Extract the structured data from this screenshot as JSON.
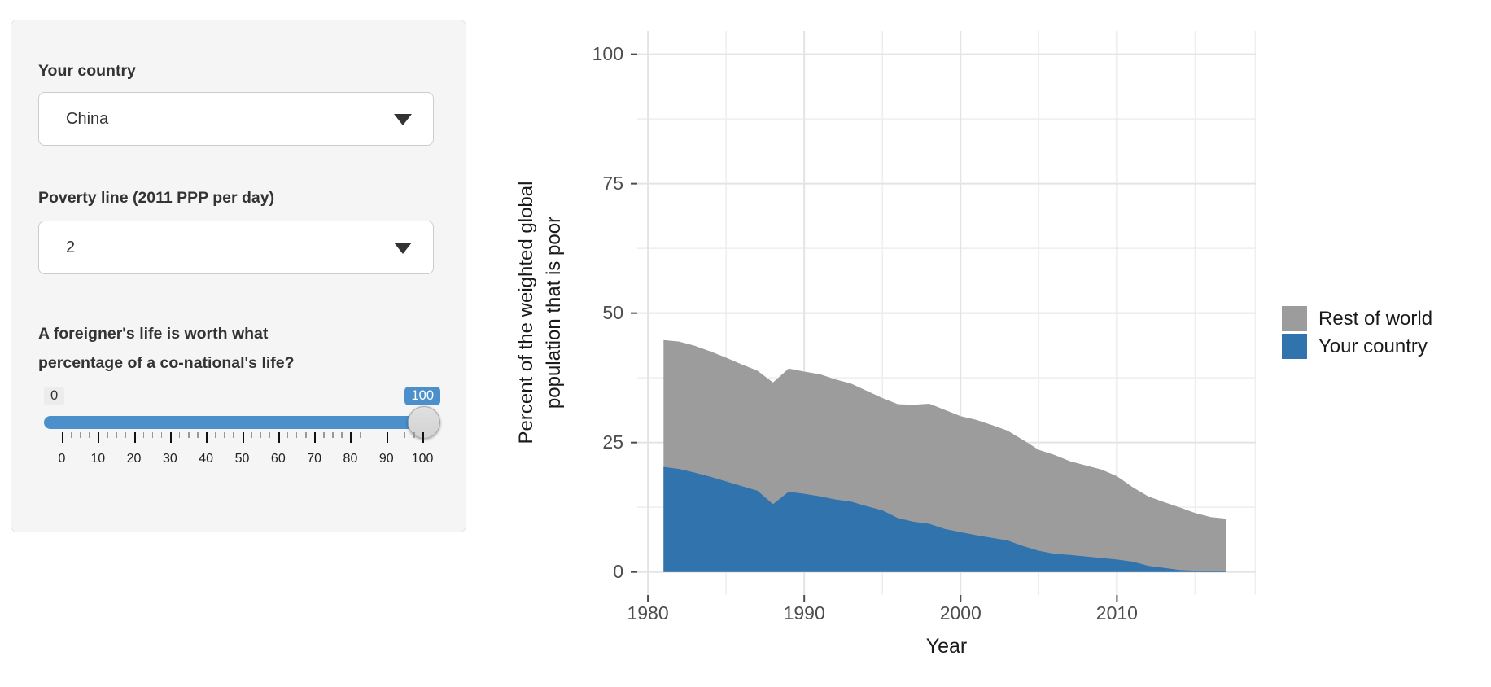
{
  "sidebar": {
    "country_label": "Your country",
    "country_value": "China",
    "poverty_label": "Poverty line (2011 PPP per day)",
    "poverty_value": "2",
    "slider_label_line1": "A foreigner's life is worth what",
    "slider_label_line2": "percentage of a co-national's life?",
    "slider": {
      "min_label": "0",
      "value_label": "100",
      "tick_labels": [
        "0",
        "10",
        "20",
        "30",
        "40",
        "50",
        "60",
        "70",
        "80",
        "90",
        "100"
      ],
      "minor_per_major": 4,
      "accent": "#4b8fcb"
    }
  },
  "chart_data": {
    "type": "area",
    "stacked": true,
    "x": [
      1981,
      1982,
      1983,
      1984,
      1985,
      1986,
      1987,
      1988,
      1989,
      1990,
      1991,
      1992,
      1993,
      1994,
      1995,
      1996,
      1997,
      1998,
      1999,
      2000,
      2001,
      2002,
      2003,
      2004,
      2005,
      2006,
      2007,
      2008,
      2009,
      2010,
      2011,
      2012,
      2013,
      2014,
      2015,
      2016,
      2017
    ],
    "series": [
      {
        "name": "Rest of world",
        "color": "#9c9c9c",
        "values": [
          24.5,
          24.6,
          24.5,
          24.2,
          23.9,
          23.5,
          23.2,
          23.5,
          23.8,
          23.6,
          23.6,
          23.2,
          22.8,
          22.3,
          21.7,
          22.0,
          22.6,
          23.2,
          23.0,
          22.4,
          22.3,
          21.8,
          21.2,
          20.5,
          19.5,
          19.1,
          18.1,
          17.6,
          17.1,
          16.1,
          14.4,
          13.4,
          12.7,
          12.1,
          11.15,
          10.45,
          10.2
        ]
      },
      {
        "name": "Your country",
        "color": "#3073ad",
        "values": [
          20.3,
          19.9,
          19.2,
          18.4,
          17.5,
          16.6,
          15.7,
          13.1,
          15.5,
          15.1,
          14.6,
          14.0,
          13.6,
          12.7,
          11.9,
          10.4,
          9.7,
          9.3,
          8.3,
          7.7,
          7.1,
          6.6,
          6.1,
          5.0,
          4.1,
          3.5,
          3.3,
          3.0,
          2.7,
          2.4,
          2.0,
          1.2,
          0.8,
          0.4,
          0.25,
          0.15,
          0.1
        ]
      }
    ],
    "xlabel": "Year",
    "ylabel_line1": "Percent of the weighted global",
    "ylabel_line2": "population that is poor",
    "ylim": [
      0,
      100
    ],
    "y_major_ticks": [
      0,
      25,
      50,
      75,
      100
    ],
    "y_minor_ticks": [
      12.5,
      37.5,
      62.5,
      87.5
    ],
    "x_major_ticks": [
      1980,
      1990,
      2000,
      2010
    ],
    "x_minor_ticks": [
      1985,
      1995,
      2005,
      2015,
      2018.85
    ],
    "x_range": [
      1979.32,
      2018.88
    ],
    "y_range": [
      -4.45,
      104.5
    ],
    "grid": true,
    "legend_position": "right"
  }
}
